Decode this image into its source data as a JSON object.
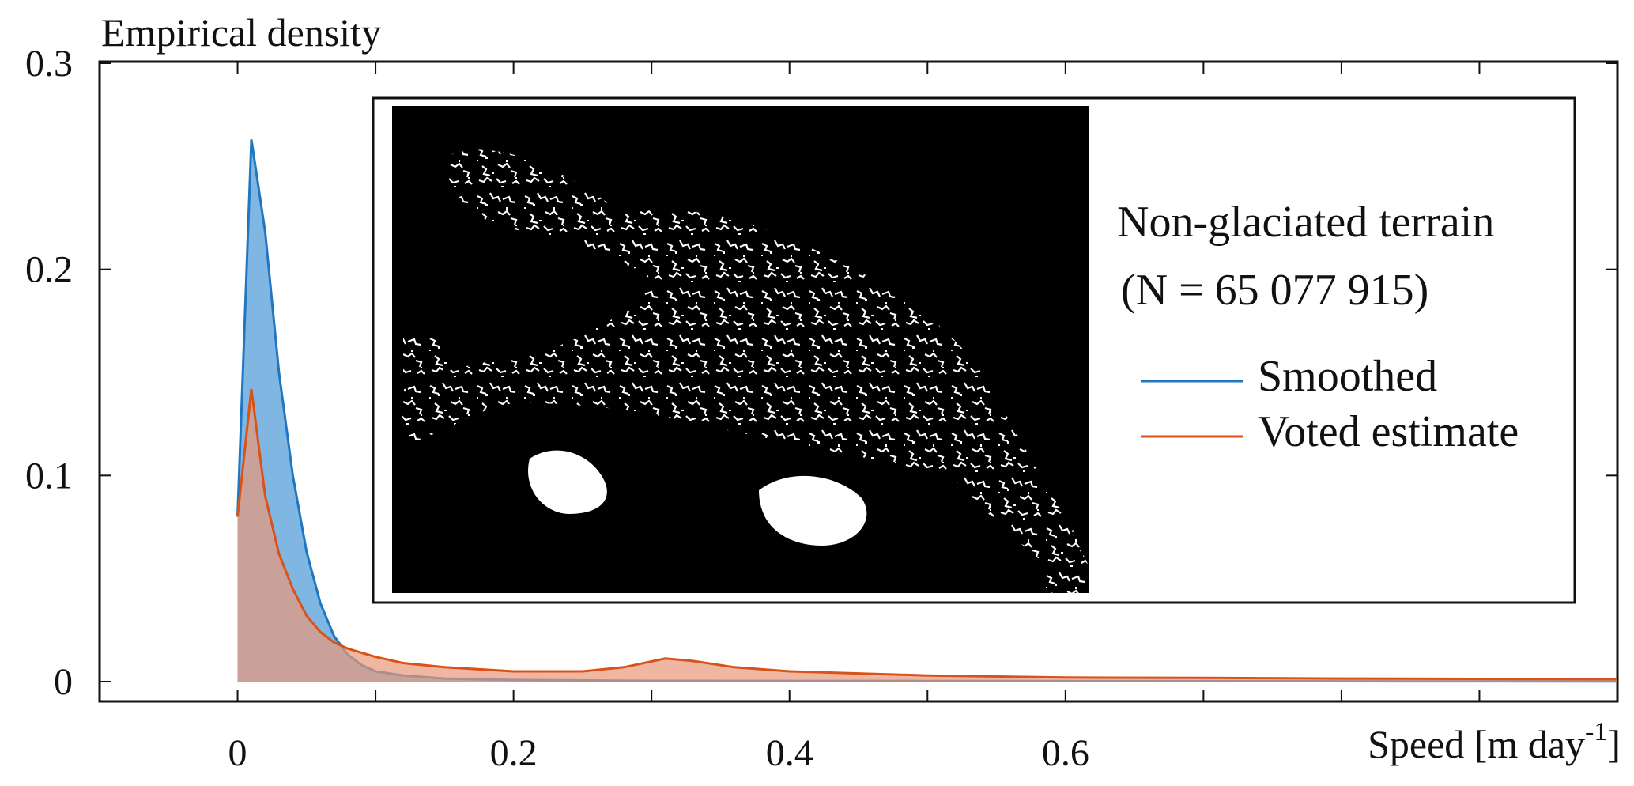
{
  "chart_data": {
    "type": "area",
    "ylabel": "Empirical density",
    "xlabel": "Speed [m   day",
    "xlabel_superscript": "-1",
    "xlabel_close": "]",
    "xlim": [
      -0.1,
      1.0
    ],
    "ylim": [
      0,
      0.3
    ],
    "x_ticks": [
      0,
      0.2,
      0.4,
      0.6
    ],
    "x_tick_labels": [
      "0",
      "0.2",
      "0.4",
      "0.6"
    ],
    "y_ticks": [
      0,
      0.1,
      0.2,
      0.3
    ],
    "y_tick_labels": [
      "0",
      "0.1",
      "0.2",
      "0.3"
    ],
    "inset": {
      "title": "Non-glaciated terrain",
      "count_label": "(N = 65 077 915)",
      "image": "binary map of non-glaciated terrain (white) on black background"
    },
    "legend_position": "inset right",
    "series": [
      {
        "name": "Smoothed",
        "color": "#1f77c2",
        "fill": "#78b2e0",
        "x": [
          0,
          0.01,
          0.02,
          0.03,
          0.04,
          0.05,
          0.06,
          0.07,
          0.08,
          0.09,
          0.1,
          0.12,
          0.15,
          0.2,
          0.3,
          0.5,
          0.7,
          1.0
        ],
        "y": [
          0.08,
          0.263,
          0.218,
          0.15,
          0.1,
          0.063,
          0.038,
          0.022,
          0.013,
          0.008,
          0.005,
          0.003,
          0.0015,
          0.0008,
          0.0004,
          0.0003,
          0.0002,
          0.0001
        ]
      },
      {
        "name": "Voted estimate",
        "color": "#d95319",
        "fill": "#e8987a",
        "x": [
          0,
          0.01,
          0.02,
          0.03,
          0.04,
          0.05,
          0.06,
          0.07,
          0.08,
          0.1,
          0.12,
          0.15,
          0.2,
          0.25,
          0.28,
          0.31,
          0.33,
          0.36,
          0.4,
          0.45,
          0.5,
          0.6,
          0.7,
          0.8,
          1.0
        ],
        "y": [
          0.08,
          0.142,
          0.09,
          0.062,
          0.045,
          0.032,
          0.024,
          0.019,
          0.016,
          0.012,
          0.009,
          0.007,
          0.005,
          0.005,
          0.007,
          0.0112,
          0.01,
          0.007,
          0.005,
          0.004,
          0.003,
          0.002,
          0.0018,
          0.0015,
          0.0012
        ]
      }
    ]
  }
}
